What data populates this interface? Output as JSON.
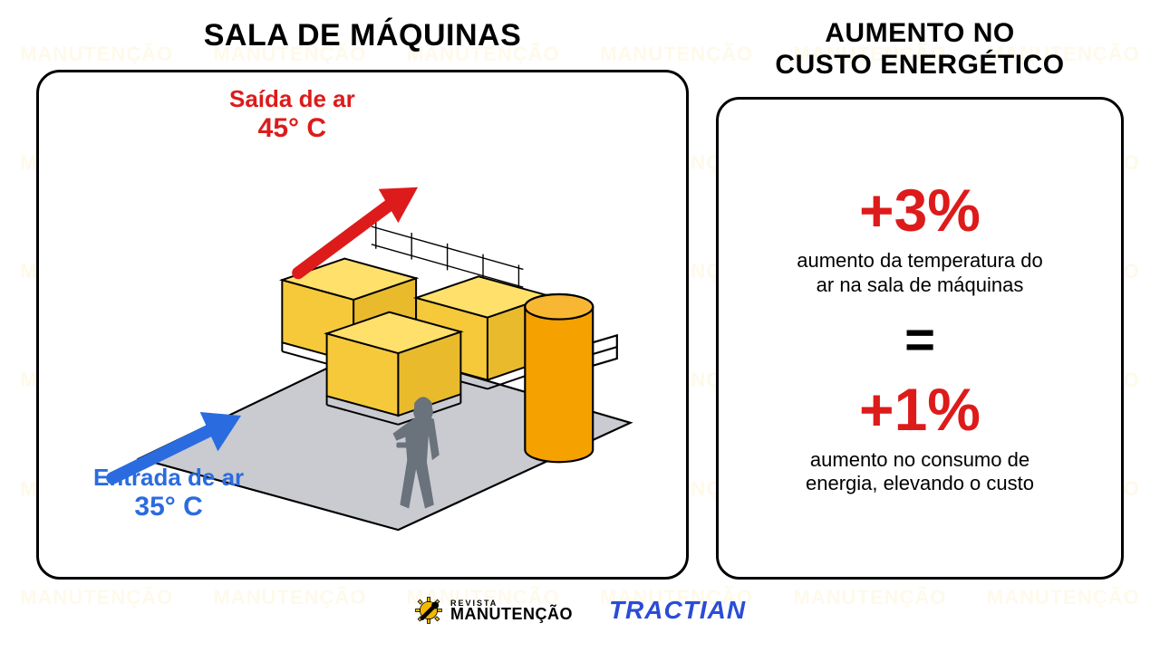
{
  "watermark": {
    "text": "MANUTENÇÃO"
  },
  "left": {
    "title": "SALA DE MÁQUINAS",
    "outlet": {
      "label": "Saída de ar",
      "temp": "45° C",
      "color": "#dd1b1b"
    },
    "inlet": {
      "label": "Entrada de ar",
      "temp": "35° C",
      "color": "#2a6be0"
    },
    "diagram": {
      "floor_fill": "#c9cbd0",
      "floor_stroke": "#000000",
      "crate_fill": "#f5c93a",
      "crate_stroke": "#000000",
      "cylinder_fill": "#f5a100",
      "cylinder_stroke": "#000000",
      "person_fill": "#6a727b",
      "arrow_out_color": "#dd1b1b",
      "arrow_in_color": "#2a6be0",
      "line_width_main": 2.2,
      "line_width_thin": 1.4
    }
  },
  "right": {
    "title_line1": "AUMENTO NO",
    "title_line2": "CUSTO ENERGÉTICO",
    "stat1_value": "+3%",
    "stat1_desc": "aumento da temperatura do ar na sala de máquinas",
    "equals": "=",
    "stat2_value": "+1%",
    "stat2_desc": "aumento no consumo de energia, elevando o custo",
    "accent_color": "#dd1b1b"
  },
  "footer": {
    "logo1_top": "REVISTA",
    "logo1_bottom": "MANUTENÇÃO",
    "logo1_gear_color": "#f5b800",
    "logo2_text": "TRACTIAN",
    "logo2_color": "#2a4cd6"
  },
  "colors": {
    "panel_border": "#000000",
    "text": "#000000",
    "panel_bg": "#ffffff"
  }
}
